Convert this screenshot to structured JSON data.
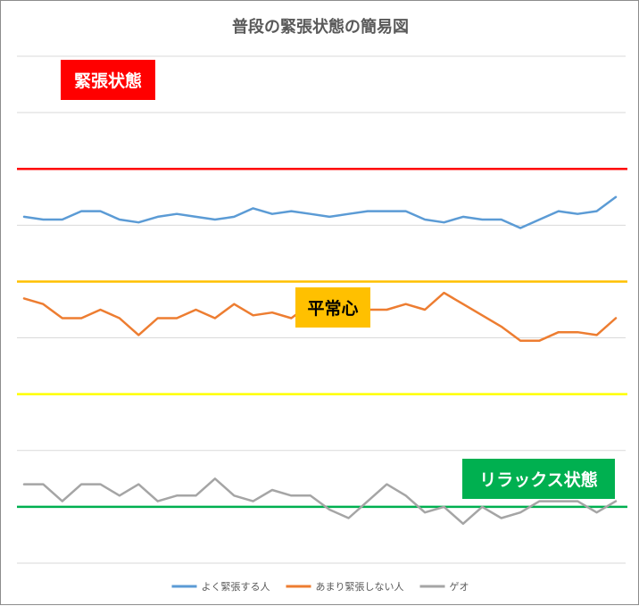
{
  "chart_data": {
    "type": "line",
    "title": "普段の緊張状態の簡易図",
    "x": [
      1,
      2,
      3,
      4,
      5,
      6,
      7,
      8,
      9,
      10,
      11,
      12,
      13,
      14,
      15,
      16,
      17,
      18,
      19,
      20,
      21,
      22,
      23,
      24,
      25,
      26,
      27,
      28,
      29,
      30,
      31,
      32
    ],
    "series": [
      {
        "name": "よく緊張する人",
        "color": "#5b9bd5",
        "values": [
          8.3,
          8.2,
          8.2,
          8.5,
          8.5,
          8.2,
          8.1,
          8.3,
          8.4,
          8.3,
          8.2,
          8.3,
          8.6,
          8.4,
          8.5,
          8.4,
          8.3,
          8.4,
          8.5,
          8.5,
          8.5,
          8.2,
          8.1,
          8.3,
          8.2,
          8.2,
          7.9,
          8.2,
          8.5,
          8.4,
          8.5,
          9.0
        ]
      },
      {
        "name": "あまり緊張しない人",
        "color": "#ed7d31",
        "values": [
          5.4,
          5.2,
          4.7,
          4.7,
          5.0,
          4.7,
          4.1,
          4.7,
          4.7,
          5.0,
          4.7,
          5.2,
          4.8,
          4.9,
          4.7,
          5.2,
          5.2,
          5.2,
          5.0,
          5.0,
          5.2,
          5.0,
          5.6,
          5.2,
          4.8,
          4.4,
          3.9,
          3.9,
          4.2,
          4.2,
          4.1,
          4.7
        ]
      },
      {
        "name": "ゲオ",
        "color": "#a5a5a5",
        "values": [
          -1.2,
          -1.2,
          -1.8,
          -1.2,
          -1.2,
          -1.6,
          -1.2,
          -1.8,
          -1.6,
          -1.6,
          -1.0,
          -1.6,
          -1.8,
          -1.4,
          -1.6,
          -1.6,
          -2.1,
          -2.4,
          -1.8,
          -1.2,
          -1.6,
          -2.2,
          -2.0,
          -2.6,
          -2.0,
          -2.4,
          -2.2,
          -1.8,
          -1.8,
          -1.8,
          -2.2,
          -1.8
        ]
      }
    ],
    "ylim": [
      -4,
      14
    ],
    "y_gridlines": [
      -4,
      -2,
      0,
      2,
      4,
      6,
      8,
      10,
      12,
      14
    ],
    "y_tick_labels_visible": false,
    "x_tick_labels_visible": false,
    "reference_lines": [
      {
        "y": 10,
        "color": "#ff0000"
      },
      {
        "y": 6,
        "color": "#ffc000"
      },
      {
        "y": 2,
        "color": "#ffff00"
      },
      {
        "y": -2,
        "color": "#00b050"
      }
    ],
    "annotations": [
      {
        "text": "緊張状態",
        "bg": "#ff0000",
        "fg": "#ffffff"
      },
      {
        "text": "平常心",
        "bg": "#ffc000",
        "fg": "#000000"
      },
      {
        "text": "リラックス状態",
        "bg": "#00b050",
        "fg": "#ffffff"
      }
    ],
    "legend": {
      "position": "bottom"
    },
    "grid": true
  }
}
